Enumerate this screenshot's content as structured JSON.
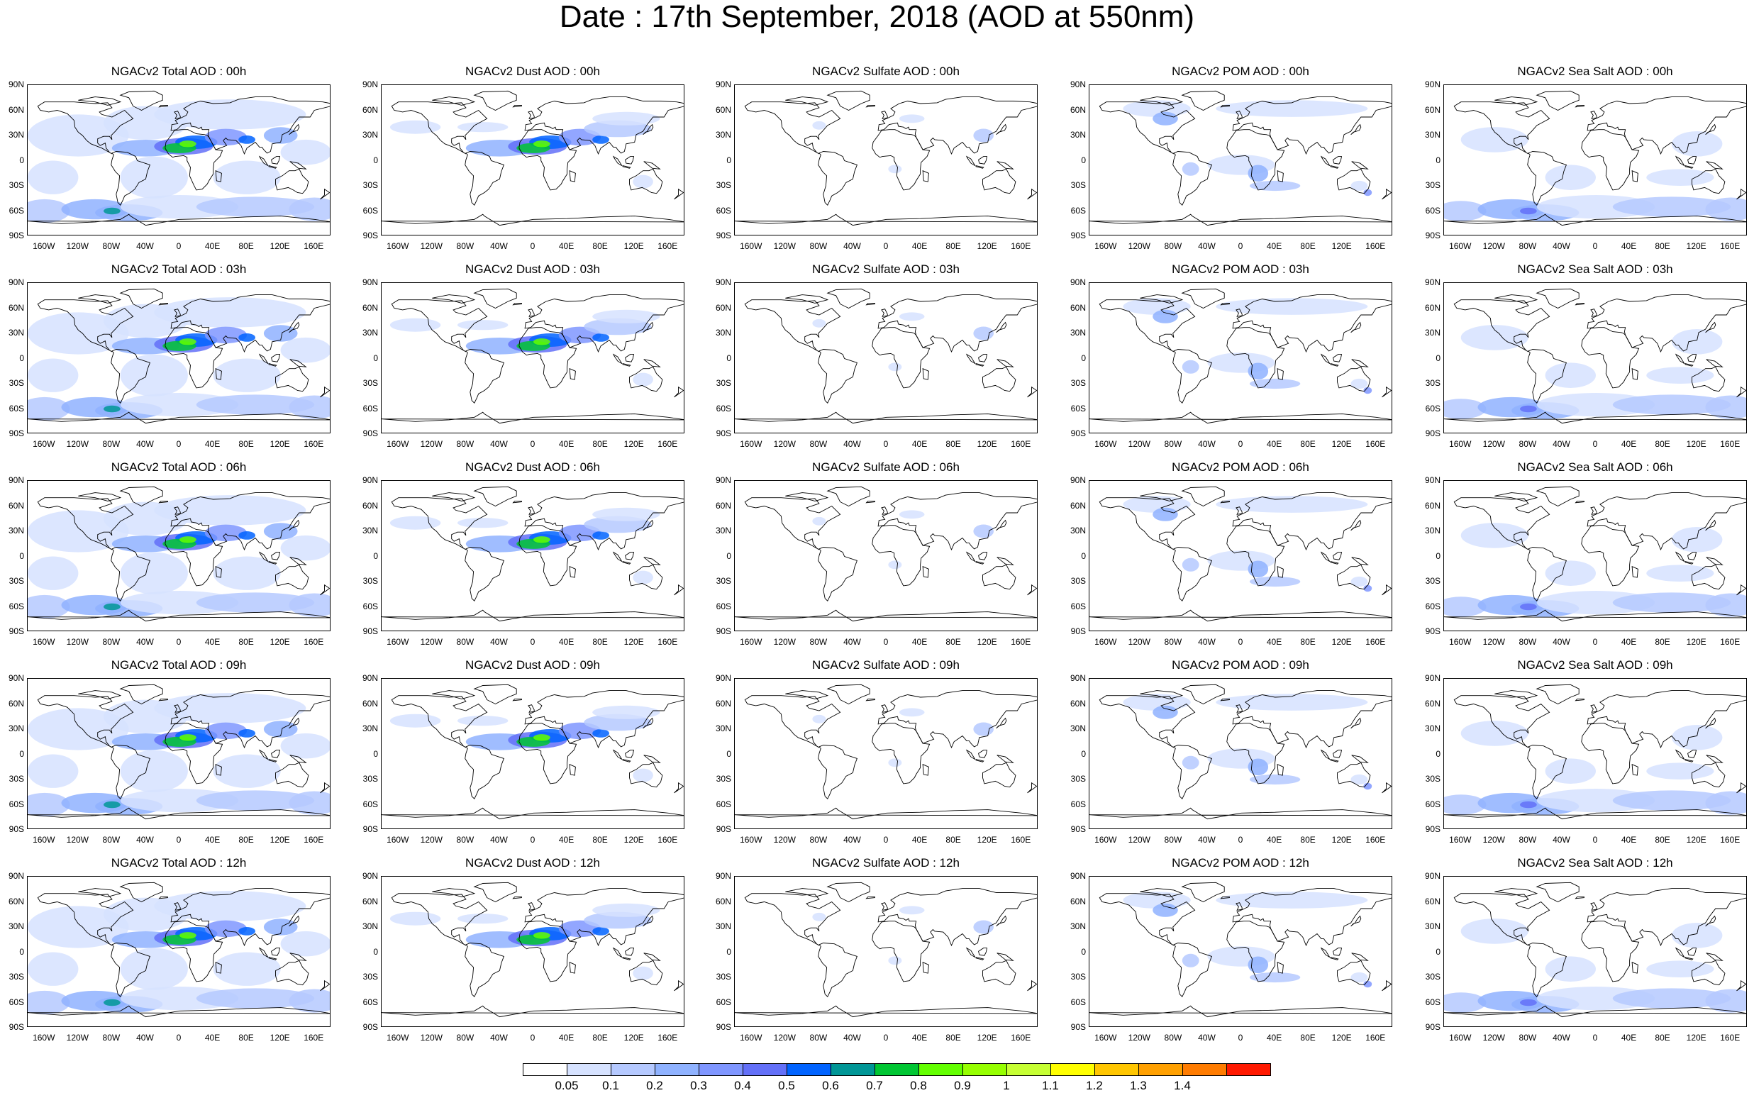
{
  "title": "Date : 17th September, 2018 (AOD at 550nm)",
  "panels": [
    {
      "title": "NGACv2 Total AOD : 00h",
      "species": "total",
      "hour": "00h"
    },
    {
      "title": "NGACv2 Dust AOD : 00h",
      "species": "dust",
      "hour": "00h"
    },
    {
      "title": "NGACv2 Sulfate AOD : 00h",
      "species": "sulfate",
      "hour": "00h"
    },
    {
      "title": "NGACv2 POM AOD : 00h",
      "species": "pom",
      "hour": "00h"
    },
    {
      "title": "NGACv2 Sea Salt AOD : 00h",
      "species": "seasalt",
      "hour": "00h"
    },
    {
      "title": "NGACv2 Total AOD : 03h",
      "species": "total",
      "hour": "03h"
    },
    {
      "title": "NGACv2 Dust AOD : 03h",
      "species": "dust",
      "hour": "03h"
    },
    {
      "title": "NGACv2 Sulfate AOD : 03h",
      "species": "sulfate",
      "hour": "03h"
    },
    {
      "title": "NGACv2 POM AOD : 03h",
      "species": "pom",
      "hour": "03h"
    },
    {
      "title": "NGACv2 Sea Salt AOD : 03h",
      "species": "seasalt",
      "hour": "03h"
    },
    {
      "title": "NGACv2 Total AOD : 06h",
      "species": "total",
      "hour": "06h"
    },
    {
      "title": "NGACv2 Dust AOD : 06h",
      "species": "dust",
      "hour": "06h"
    },
    {
      "title": "NGACv2 Sulfate AOD : 06h",
      "species": "sulfate",
      "hour": "06h"
    },
    {
      "title": "NGACv2 POM AOD : 06h",
      "species": "pom",
      "hour": "06h"
    },
    {
      "title": "NGACv2 Sea Salt AOD : 06h",
      "species": "seasalt",
      "hour": "06h"
    },
    {
      "title": "NGACv2 Total AOD : 09h",
      "species": "total",
      "hour": "09h"
    },
    {
      "title": "NGACv2 Dust AOD : 09h",
      "species": "dust",
      "hour": "09h"
    },
    {
      "title": "NGACv2 Sulfate AOD : 09h",
      "species": "sulfate",
      "hour": "09h"
    },
    {
      "title": "NGACv2 POM AOD : 09h",
      "species": "pom",
      "hour": "09h"
    },
    {
      "title": "NGACv2 Sea Salt  AOD : 09h",
      "species": "seasalt",
      "hour": "09h"
    },
    {
      "title": "NGACv2 Total AOD :  12h",
      "species": "total",
      "hour": "12h"
    },
    {
      "title": "NGACv2 Dust AOD : 12h",
      "species": "dust",
      "hour": "12h"
    },
    {
      "title": "NGACv2 Sulfate AOD : 12h",
      "species": "sulfate",
      "hour": "12h"
    },
    {
      "title": "NGACv2 POM  AOD : 12h",
      "species": "pom",
      "hour": "12h"
    },
    {
      "title": "NGACv2 Sea Salt  AOD : 12h",
      "species": "seasalt",
      "hour": "12h"
    }
  ],
  "lat_labels": [
    "90N",
    "60N",
    "30N",
    "0",
    "30S",
    "60S",
    "90S"
  ],
  "lon_labels": [
    "160W",
    "120W",
    "80W",
    "40W",
    "0",
    "40E",
    "80E",
    "120E",
    "160E"
  ],
  "lon_values": [
    -160,
    -120,
    -80,
    -40,
    0,
    40,
    80,
    120,
    160
  ],
  "colorbar": {
    "labels": [
      "0.05",
      "0.1",
      "0.2",
      "0.3",
      "0.4",
      "0.5",
      "0.6",
      "0.7",
      "0.8",
      "0.9",
      "1",
      "1.1",
      "1.2",
      "1.3",
      "1.4"
    ],
    "colors": [
      "#ffffff",
      "#d6e2ff",
      "#b5c9ff",
      "#8fb2ff",
      "#7f96ff",
      "#6370f8",
      "#0063ff",
      "#009696",
      "#00c633",
      "#63ff00",
      "#96ff00",
      "#c6ff33",
      "#ffff00",
      "#ffc600",
      "#ffa000",
      "#ff7c00",
      "#ff1900"
    ]
  }
}
